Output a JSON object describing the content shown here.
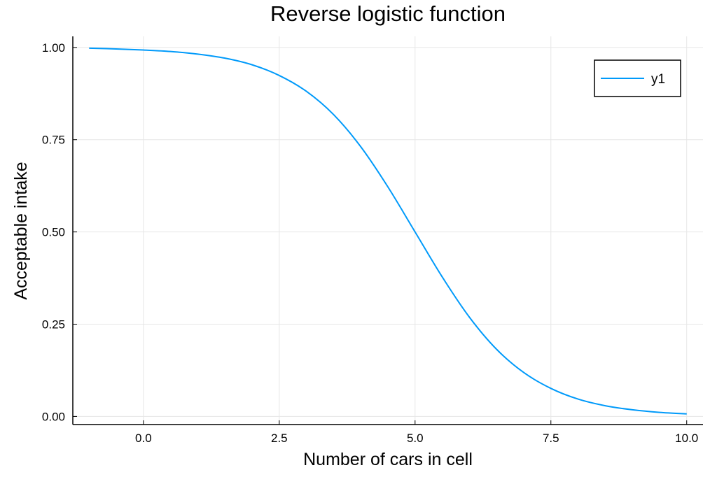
{
  "chart_data": {
    "type": "line",
    "title": "Reverse logistic function",
    "xlabel": "Number of cars in cell",
    "ylabel": "Acceptable intake",
    "xlim": [
      -1.3,
      10.3
    ],
    "ylim": [
      -0.022,
      1.03
    ],
    "x_ticks": [
      0.0,
      2.5,
      5.0,
      7.5,
      10.0
    ],
    "x_tick_labels": [
      "0.0",
      "2.5",
      "5.0",
      "7.5",
      "10.0"
    ],
    "y_ticks": [
      0.0,
      0.25,
      0.5,
      0.75,
      1.0
    ],
    "y_tick_labels": [
      "0.00",
      "0.25",
      "0.50",
      "0.75",
      "1.00"
    ],
    "grid": true,
    "legend_position": "top-right",
    "series": [
      {
        "name": "y1",
        "color": "#009AFA",
        "x": [
          -1.0,
          -0.5,
          0.0,
          0.5,
          1.0,
          1.5,
          2.0,
          2.5,
          3.0,
          3.5,
          4.0,
          4.5,
          5.0,
          5.5,
          6.0,
          6.5,
          7.0,
          7.5,
          8.0,
          8.5,
          9.0,
          9.5,
          10.0
        ],
        "y": [
          0.998,
          0.996,
          0.993,
          0.989,
          0.982,
          0.971,
          0.953,
          0.924,
          0.881,
          0.818,
          0.731,
          0.622,
          0.5,
          0.378,
          0.269,
          0.182,
          0.119,
          0.076,
          0.047,
          0.029,
          0.018,
          0.011,
          0.007
        ]
      }
    ]
  }
}
